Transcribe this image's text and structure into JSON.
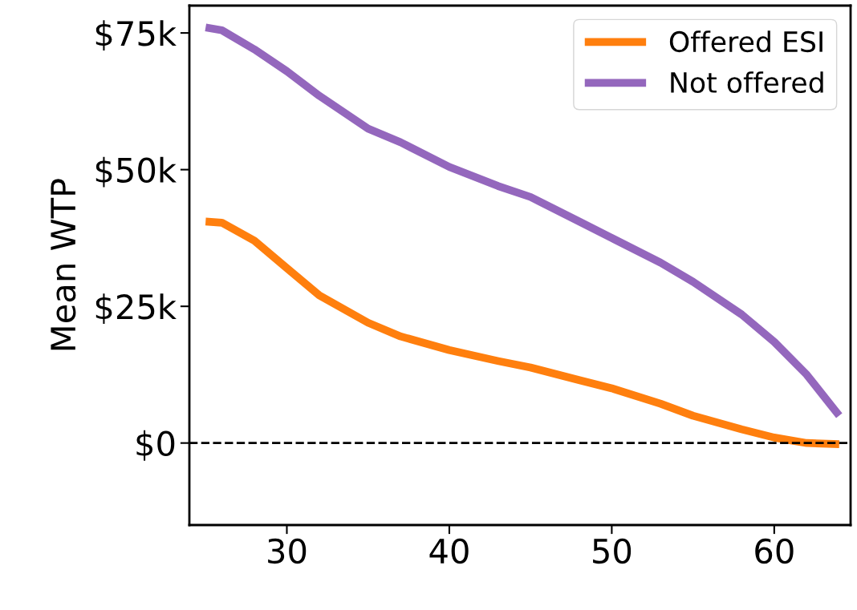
{
  "chart_data": {
    "type": "line",
    "ylabel": "Mean WTP",
    "x": [
      25,
      26,
      28,
      30,
      32,
      35,
      37,
      40,
      43,
      45,
      48,
      50,
      53,
      55,
      58,
      60,
      62,
      64
    ],
    "series": [
      {
        "name": "Offered ESI",
        "color": "#ff7f0e",
        "values": [
          40500,
          40300,
          37000,
          32000,
          27000,
          22000,
          19500,
          17000,
          15000,
          13800,
          11500,
          10000,
          7200,
          5000,
          2500,
          1000,
          0,
          -200
        ]
      },
      {
        "name": "Not offered",
        "color": "#9467bd",
        "values": [
          76000,
          75500,
          72000,
          68000,
          63500,
          57500,
          55000,
          50500,
          47000,
          45000,
          40500,
          37500,
          33000,
          29500,
          23500,
          18500,
          12500,
          5000
        ]
      }
    ],
    "xlim": [
      24,
      64.7
    ],
    "ylim": [
      -15000,
      80000
    ],
    "xticks": [
      30,
      40,
      50,
      60
    ],
    "yticks": [
      {
        "value": 0,
        "label": "$0"
      },
      {
        "value": 25000,
        "label": "$25k"
      },
      {
        "value": 50000,
        "label": "$50k"
      },
      {
        "value": 75000,
        "label": "$75k"
      }
    ],
    "ref_lines": [
      {
        "axis": "y",
        "value": 0,
        "color": "#000000",
        "line_style": "dashed"
      }
    ],
    "grid": false,
    "legend": "top right",
    "line_style": "solid",
    "marker": "none"
  }
}
